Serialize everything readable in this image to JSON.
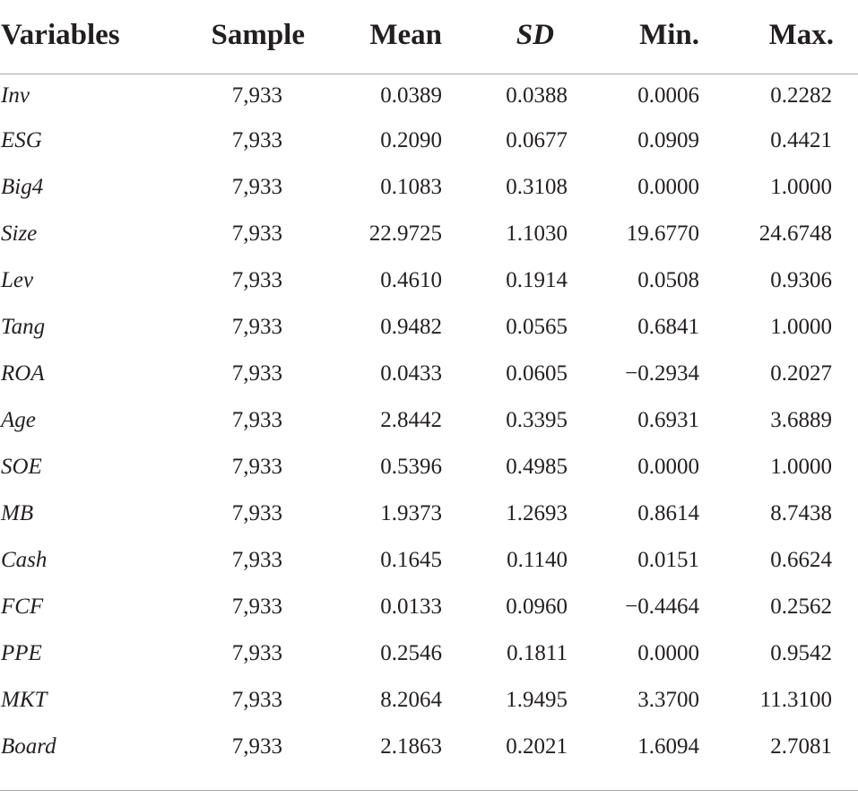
{
  "table": {
    "headers": [
      "Variables",
      "Sample",
      "Mean",
      "SD",
      "Min.",
      "Max."
    ],
    "rows": [
      [
        "Inv",
        "7,933",
        "0.0389",
        "0.0388",
        "0.0006",
        "0.2282"
      ],
      [
        "ESG",
        "7,933",
        "0.2090",
        "0.0677",
        "0.0909",
        "0.4421"
      ],
      [
        "Big4",
        "7,933",
        "0.1083",
        "0.3108",
        "0.0000",
        "1.0000"
      ],
      [
        "Size",
        "7,933",
        "22.9725",
        "1.1030",
        "19.6770",
        "24.6748"
      ],
      [
        "Lev",
        "7,933",
        "0.4610",
        "0.1914",
        "0.0508",
        "0.9306"
      ],
      [
        "Tang",
        "7,933",
        "0.9482",
        "0.0565",
        "0.6841",
        "1.0000"
      ],
      [
        "ROA",
        "7,933",
        "0.0433",
        "0.0605",
        "−0.2934",
        "0.2027"
      ],
      [
        "Age",
        "7,933",
        "2.8442",
        "0.3395",
        "0.6931",
        "3.6889"
      ],
      [
        "SOE",
        "7,933",
        "0.5396",
        "0.4985",
        "0.0000",
        "1.0000"
      ],
      [
        "MB",
        "7,933",
        "1.9373",
        "1.2693",
        "0.8614",
        "8.7438"
      ],
      [
        "Cash",
        "7,933",
        "0.1645",
        "0.1140",
        "0.0151",
        "0.6624"
      ],
      [
        "FCF",
        "7,933",
        "0.0133",
        "0.0960",
        "−0.4464",
        "0.2562"
      ],
      [
        "PPE",
        "7,933",
        "0.2546",
        "0.1811",
        "0.0000",
        "0.9542"
      ],
      [
        "MKT",
        "7,933",
        "8.2064",
        "1.9495",
        "3.3700",
        "11.3100"
      ],
      [
        "Board",
        "7,933",
        "2.1863",
        "0.2021",
        "1.6094",
        "2.7081"
      ]
    ]
  }
}
